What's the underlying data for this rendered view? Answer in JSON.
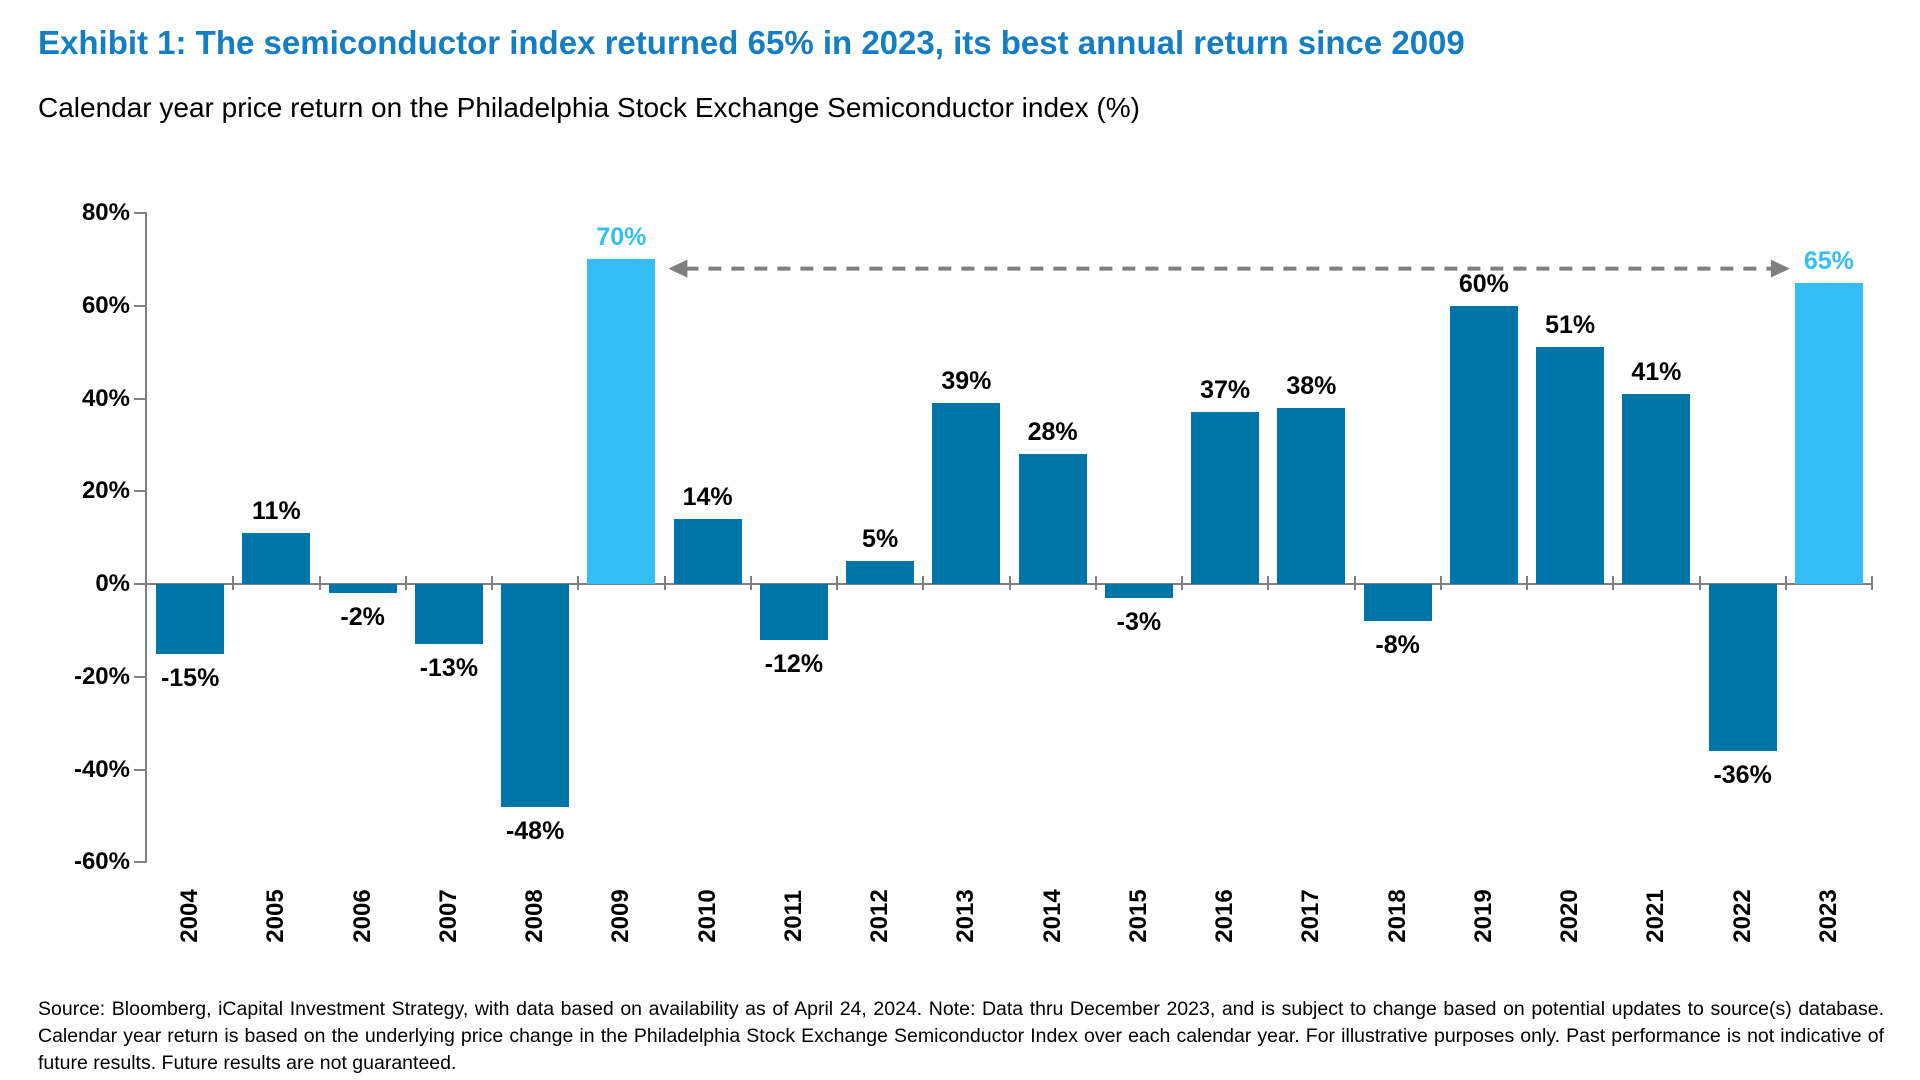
{
  "title": "Exhibit 1: The semiconductor index returned 65% in 2023, its best annual return since 2009",
  "subtitle": "Calendar year price return on the Philadelphia Stock Exchange Semiconductor index (%)",
  "source_note": "Source: Bloomberg, iCapital Investment Strategy, with data based on availability as of April 24, 2024. Note: Data thru December 2023, and is subject to change based on potential updates to source(s) database. Calendar year return is based on the underlying price change in the Philadelphia Stock Exchange Semiconductor Index over each calendar year. For illustrative purposes only. Past performance is not indicative of future results. Future results are not guaranteed.",
  "colors": {
    "title_blue": "#157DC2",
    "bar_blue": "#0076A8",
    "highlight_blue": "#35BEF5",
    "axis_gray": "#808080",
    "arrow_gray": "#7F7F7F",
    "text_black": "#000000"
  },
  "chart_data": {
    "type": "bar",
    "categories": [
      "2004",
      "2005",
      "2006",
      "2007",
      "2008",
      "2009",
      "2010",
      "2011",
      "2012",
      "2013",
      "2014",
      "2015",
      "2016",
      "2017",
      "2018",
      "2019",
      "2020",
      "2021",
      "2022",
      "2023"
    ],
    "values": [
      -15,
      11,
      -2,
      -13,
      -48,
      70,
      14,
      -12,
      5,
      39,
      28,
      -3,
      37,
      38,
      -8,
      60,
      51,
      41,
      -36,
      65
    ],
    "value_labels": [
      "-15%",
      "11%",
      "-2%",
      "-13%",
      "-48%",
      "70%",
      "14%",
      "-12%",
      "5%",
      "39%",
      "28%",
      "-3%",
      "37%",
      "38%",
      "-8%",
      "60%",
      "51%",
      "41%",
      "-36%",
      "65%"
    ],
    "highlight_categories": [
      "2009",
      "2023"
    ],
    "title": "Calendar year price return on the Philadelphia Stock Exchange Semiconductor index (%)",
    "xlabel": "",
    "ylabel": "",
    "ylim": [
      -60,
      80
    ],
    "ytick_labels": [
      "80%",
      "60%",
      "40%",
      "20%",
      "0%",
      "-20%",
      "-40%",
      "-60%"
    ],
    "ytick_values": [
      80,
      60,
      40,
      20,
      0,
      -20,
      -40,
      -60
    ],
    "grid": false,
    "legend": false,
    "annotation": {
      "style": "dashed-double-arrow",
      "from_category": "2009",
      "to_category": "2023",
      "y_value": 68,
      "color": "#7F7F7F"
    }
  }
}
